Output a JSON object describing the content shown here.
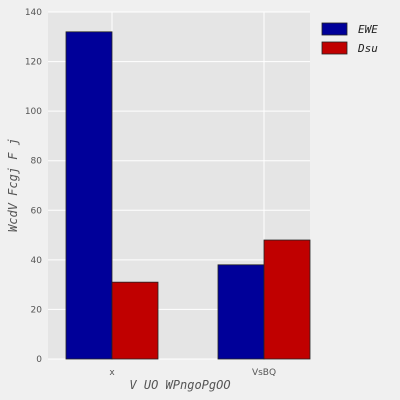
{
  "chart_data": {
    "type": "bar",
    "categories": [
      "x",
      "VsBQ"
    ],
    "series": [
      {
        "name": "EWE",
        "values": [
          132,
          38
        ],
        "color": "#000099"
      },
      {
        "name": "Dsu",
        "values": [
          31,
          48
        ],
        "color": "#c00000"
      }
    ],
    "xlabel": "V UO WPngoPgOO",
    "ylabel": "WcdV Fcgj F j",
    "ylim": [
      0,
      140
    ],
    "yticks": [
      0,
      20,
      40,
      60,
      80,
      100,
      120,
      140
    ],
    "grid": true,
    "legend_position": "right, outside plot"
  }
}
